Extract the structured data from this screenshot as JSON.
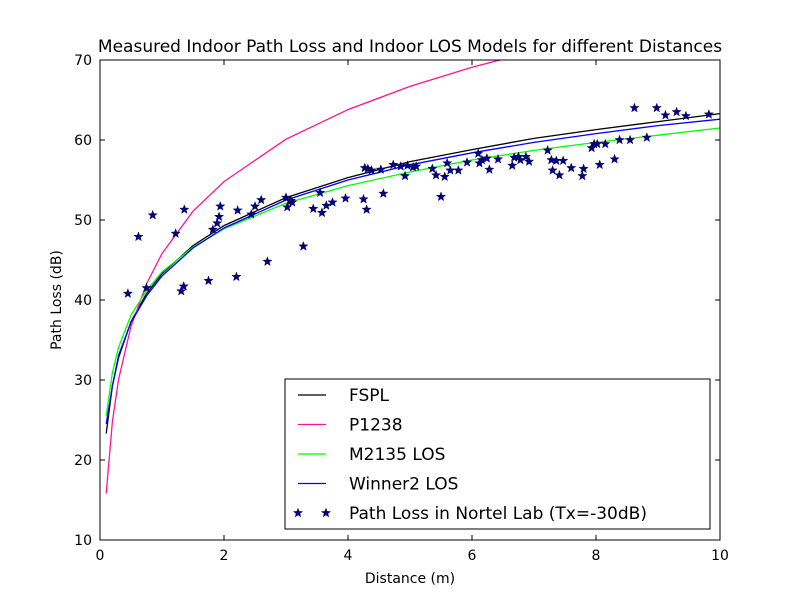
{
  "chart_data": {
    "type": "line",
    "title": "Measured Indoor Path Loss and Indoor LOS Models for different Distances",
    "xlabel": "Distance (m)",
    "ylabel": "Path Loss (dB)",
    "xlim": [
      0,
      10
    ],
    "ylim": [
      10,
      70
    ],
    "xticks": [
      0,
      2,
      4,
      6,
      8,
      10
    ],
    "yticks": [
      10,
      20,
      30,
      40,
      50,
      60,
      70
    ],
    "grid": false,
    "legend_position": "lower-right",
    "series": [
      {
        "name": "FSPL",
        "type": "line",
        "color": "#000000",
        "x": [
          0.1,
          0.2,
          0.3,
          0.5,
          0.75,
          1,
          1.5,
          2,
          3,
          4,
          5,
          6,
          7,
          8,
          9,
          10
        ],
        "y": [
          23.3,
          29.3,
          32.8,
          37.3,
          40.8,
          43.3,
          46.8,
          49.3,
          52.8,
          55.3,
          57.3,
          58.8,
          60.2,
          61.3,
          62.3,
          63.3
        ]
      },
      {
        "name": "P1238",
        "type": "line",
        "color": "#ff1493",
        "x": [
          0.1,
          0.2,
          0.3,
          0.5,
          0.75,
          1,
          1.5,
          2,
          3,
          4,
          5,
          6,
          7,
          8,
          9,
          10
        ],
        "y": [
          15.8,
          24.8,
          30.1,
          36.7,
          42.0,
          45.8,
          51.1,
          54.8,
          60.1,
          63.8,
          66.7,
          69.1,
          71.1,
          72.8,
          74.4,
          75.8
        ]
      },
      {
        "name": "M2135 LOS",
        "type": "line",
        "color": "#00ff00",
        "x": [
          0.1,
          0.2,
          0.3,
          0.5,
          0.75,
          1,
          1.5,
          2,
          3,
          4,
          5,
          6,
          7,
          8,
          9,
          10
        ],
        "y": [
          25.5,
          30.9,
          34.1,
          38.1,
          41.2,
          43.5,
          46.6,
          48.9,
          52.1,
          54.3,
          56.0,
          57.5,
          58.7,
          59.7,
          60.6,
          61.5
        ]
      },
      {
        "name": "Winner2 LOS",
        "type": "line",
        "color": "#0000ff",
        "x": [
          0.1,
          0.2,
          0.3,
          0.5,
          0.75,
          1,
          1.5,
          2,
          3,
          4,
          5,
          6,
          7,
          8,
          9,
          10
        ],
        "y": [
          24.5,
          29.2,
          33.1,
          37.2,
          40.5,
          43.0,
          46.5,
          49.0,
          52.5,
          55.0,
          56.9,
          58.4,
          59.7,
          60.8,
          61.8,
          62.6
        ]
      },
      {
        "name": "Path Loss in Nortel Lab (Tx=-30dB)",
        "type": "scatter",
        "color": "#00008b",
        "x": [
          0.45,
          0.62,
          0.75,
          0.85,
          1.22,
          1.31,
          1.35,
          1.36,
          1.75,
          1.82,
          1.89,
          1.92,
          1.94,
          2.2,
          2.22,
          2.44,
          2.5,
          2.6,
          2.7,
          3.0,
          3.02,
          3.06,
          3.08,
          3.1,
          3.28,
          3.44,
          3.55,
          3.58,
          3.65,
          3.75,
          3.96,
          4.25,
          4.27,
          4.3,
          4.32,
          4.38,
          4.53,
          4.57,
          4.73,
          4.85,
          4.92,
          4.96,
          5.05,
          5.1,
          5.36,
          5.42,
          5.5,
          5.56,
          5.6,
          5.65,
          5.78,
          5.92,
          6.1,
          6.12,
          6.16,
          6.24,
          6.28,
          6.42,
          6.65,
          6.68,
          6.75,
          6.78,
          6.87,
          6.92,
          7.22,
          7.28,
          7.3,
          7.36,
          7.41,
          7.47,
          7.6,
          7.78,
          7.8,
          7.93,
          7.97,
          8.02,
          8.06,
          8.15,
          8.3,
          8.38,
          8.55,
          8.62,
          8.82,
          8.98,
          9.12,
          9.3,
          9.45,
          9.82
        ],
        "y": [
          40.8,
          47.9,
          41.5,
          50.6,
          48.3,
          41.1,
          41.7,
          51.3,
          42.4,
          48.8,
          49.6,
          50.4,
          51.7,
          42.9,
          51.2,
          50.7,
          51.7,
          52.5,
          44.8,
          52.8,
          51.6,
          52.4,
          52.4,
          52.2,
          46.7,
          51.4,
          53.4,
          50.9,
          51.8,
          52.2,
          52.7,
          52.6,
          56.5,
          51.3,
          56.4,
          56.2,
          56.3,
          53.3,
          56.9,
          56.7,
          55.5,
          56.8,
          56.6,
          56.7,
          56.4,
          55.6,
          52.9,
          55.4,
          57.1,
          56.2,
          56.2,
          57.2,
          58.3,
          57.1,
          57.5,
          57.7,
          56.3,
          57.6,
          56.8,
          57.8,
          57.9,
          57.5,
          57.9,
          57.3,
          58.7,
          57.5,
          56.2,
          57.4,
          55.6,
          57.4,
          56.5,
          55.5,
          56.4,
          59.0,
          59.5,
          59.5,
          56.9,
          59.5,
          57.6,
          60.0,
          60.0,
          64.0,
          60.3,
          64.0,
          63.1,
          63.5,
          63.0,
          63.2
        ]
      }
    ]
  }
}
